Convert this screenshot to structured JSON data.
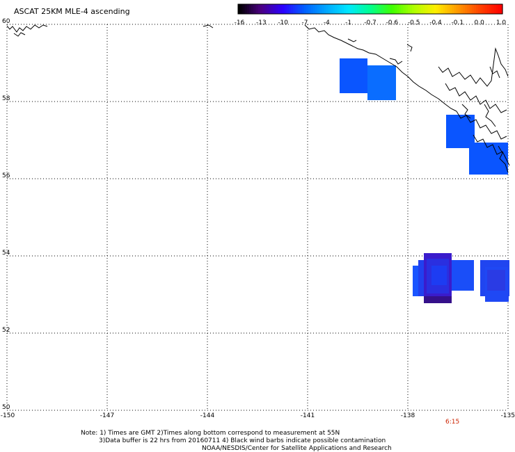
{
  "title": "ASCAT 25KM MLE-4 ascending",
  "colorbar": {
    "labels": [
      "-16",
      "-13",
      "-10",
      "-7",
      "-4",
      "-1",
      "-0.7",
      "-0.6",
      "-0.5",
      "-0.4",
      "-0.1",
      "0.0",
      "1.0"
    ],
    "colors": [
      "#000000",
      "#4b0082",
      "#2b00ff",
      "#0060ff",
      "#00a8ff",
      "#00e8ff",
      "#00ff90",
      "#40ff00",
      "#b0ff00",
      "#ffee00",
      "#ff9900",
      "#ff4400",
      "#ff0000"
    ]
  },
  "map": {
    "lon_range": [
      -150,
      -135
    ],
    "lat_range": [
      50,
      60
    ],
    "lon_ticks": [
      "-150",
      "-147",
      "-144",
      "-141",
      "-138",
      "-135"
    ],
    "lat_ticks": [
      "60",
      "58",
      "56",
      "54",
      "52",
      "50"
    ],
    "time_label": "6:15",
    "time_color": "#cc2200"
  },
  "swaths": [
    {
      "lon": -140.3,
      "lat": 58.9,
      "color": "#0a55ff"
    },
    {
      "lon": -139.5,
      "lat": 58.8,
      "color": "#0a6dff"
    },
    {
      "lon": -137.2,
      "lat": 57.5,
      "color": "#0a55ff"
    },
    {
      "lon": -136.3,
      "lat": 56.9,
      "color": "#0a55ff"
    },
    {
      "lon": -137.0,
      "lat": 53.6,
      "color": "#2f1ed8"
    },
    {
      "lon": -135.5,
      "lat": 53.6,
      "color": "#1f3df5"
    }
  ],
  "notes": {
    "line1": "Note: 1) Times are GMT 2)Times along bottom correspond to measurement at 55N",
    "line2": "3)Data buffer is 22 hrs from 20160711 4) Black wind barbs indicate possible contamination",
    "line3": "NOAA/NESDIS/Center for Satellite Applications and Research"
  }
}
